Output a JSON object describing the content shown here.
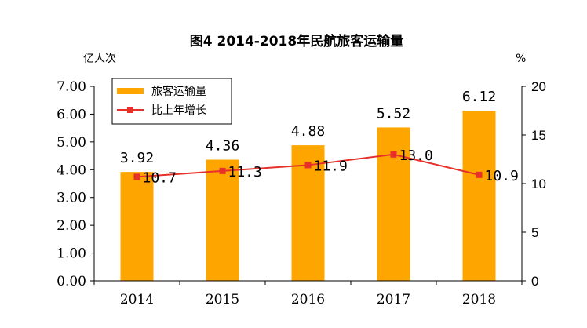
{
  "chart_data": {
    "type": "bar",
    "title": "图4 2014-2018年民航旅客运输量",
    "ylabel_left": "亿人次",
    "ylabel_right": "%",
    "categories": [
      "2014",
      "2015",
      "2016",
      "2017",
      "2018"
    ],
    "series": [
      {
        "name": "旅客运输量",
        "type": "bar",
        "axis": "left",
        "values": [
          3.92,
          4.36,
          4.88,
          5.52,
          6.12
        ],
        "labels": [
          "3.92",
          "4.36",
          "4.88",
          "5.52",
          "6.12"
        ],
        "color": "#FFA500"
      },
      {
        "name": "比上年增长",
        "type": "line",
        "axis": "right",
        "values": [
          10.7,
          11.3,
          11.9,
          13.0,
          10.9
        ],
        "labels": [
          "10.7",
          "11.3",
          "11.9",
          "13.0",
          "10.9"
        ],
        "color": "#E8302A"
      }
    ],
    "ylim_left": [
      0,
      7
    ],
    "yticks_left": [
      "0.00",
      "1.00",
      "2.00",
      "3.00",
      "4.00",
      "5.00",
      "6.00",
      "7.00"
    ],
    "ylim_right": [
      0,
      20
    ],
    "yticks_right": [
      "0",
      "5",
      "10",
      "15",
      "20"
    ],
    "grid": false,
    "legend_position": "top-left"
  }
}
